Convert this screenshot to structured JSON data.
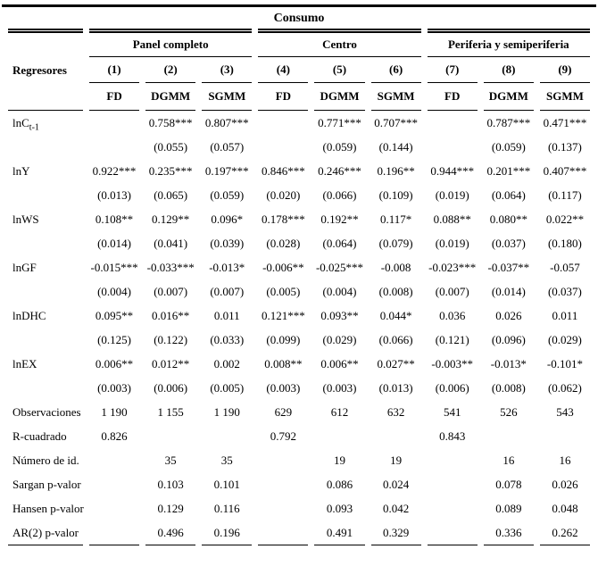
{
  "title": "Consumo",
  "header": {
    "row_label_header": "Regresores",
    "group_labels": [
      "Panel completo",
      "Centro",
      "Periferia y semiperiferia"
    ],
    "column_numbers": [
      "(1)",
      "(2)",
      "(3)",
      "(4)",
      "(5)",
      "(6)",
      "(7)",
      "(8)",
      "(9)"
    ],
    "methods": [
      "FD",
      "DGMM",
      "SGMM",
      "FD",
      "DGMM",
      "SGMM",
      "FD",
      "DGMM",
      "SGMM"
    ]
  },
  "rows": [
    {
      "label": "lnC",
      "label_sub": "t-1",
      "values": [
        "",
        "0.758***",
        "0.807***",
        "",
        "0.771***",
        "0.707***",
        "",
        "0.787***",
        "0.471***"
      ]
    },
    {
      "label": "",
      "values": [
        "",
        "(0.055)",
        "(0.057)",
        "",
        "(0.059)",
        "(0.144)",
        "",
        "(0.059)",
        "(0.137)"
      ]
    },
    {
      "label": "lnY",
      "values": [
        "0.922***",
        "0.235***",
        "0.197***",
        "0.846***",
        "0.246***",
        "0.196**",
        "0.944***",
        "0.201***",
        "0.407***"
      ]
    },
    {
      "label": "",
      "values": [
        "(0.013)",
        "(0.065)",
        "(0.059)",
        "(0.020)",
        "(0.066)",
        "(0.109)",
        "(0.019)",
        "(0.064)",
        "(0.117)"
      ]
    },
    {
      "label": "lnWS",
      "values": [
        "0.108**",
        "0.129**",
        "0.096*",
        "0.178***",
        "0.192**",
        "0.117*",
        "0.088**",
        "0.080**",
        "0.022**"
      ]
    },
    {
      "label": "",
      "values": [
        "(0.014)",
        "(0.041)",
        "(0.039)",
        "(0.028)",
        "(0.064)",
        "(0.079)",
        "(0.019)",
        "(0.037)",
        "(0.180)"
      ]
    },
    {
      "label": "lnGF",
      "values": [
        "-0.015***",
        "-0.033***",
        "-0.013*",
        "-0.006**",
        "-0.025***",
        "-0.008",
        "-0.023***",
        "-0.037**",
        "-0.057"
      ]
    },
    {
      "label": "",
      "values": [
        "(0.004)",
        "(0.007)",
        "(0.007)",
        "(0.005)",
        "(0.004)",
        "(0.008)",
        "(0.007)",
        "(0.014)",
        "(0.037)"
      ]
    },
    {
      "label": "lnDHC",
      "values": [
        "0.095**",
        "0.016**",
        "0.011",
        "0.121***",
        "0.093**",
        "0.044*",
        "0.036",
        "0.026",
        "0.011"
      ]
    },
    {
      "label": "",
      "values": [
        "(0.125)",
        "(0.122)",
        "(0.033)",
        "(0.099)",
        "(0.029)",
        "(0.066)",
        "(0.121)",
        "(0.096)",
        "(0.029)"
      ]
    },
    {
      "label": "lnEX",
      "values": [
        "0.006**",
        "0.012**",
        "0.002",
        "0.008**",
        "0.006**",
        "0.027**",
        "-0.003**",
        "-0.013*",
        "-0.101*"
      ]
    },
    {
      "label": "",
      "values": [
        "(0.003)",
        "(0.006)",
        "(0.005)",
        "(0.003)",
        "(0.003)",
        "(0.013)",
        "(0.006)",
        "(0.008)",
        "(0.062)"
      ]
    },
    {
      "label": "Observaciones",
      "values": [
        "1 190",
        "1 155",
        "1 190",
        "629",
        "612",
        "632",
        "541",
        "526",
        "543"
      ]
    },
    {
      "label": "R-cuadrado",
      "values": [
        "0.826",
        "",
        "",
        "0.792",
        "",
        "",
        "0.843",
        "",
        ""
      ]
    },
    {
      "label": "Número de id.",
      "values": [
        "",
        "35",
        "35",
        "",
        "19",
        "19",
        "",
        "16",
        "16"
      ]
    },
    {
      "label": "Sargan p-valor",
      "values": [
        "",
        "0.103",
        "0.101",
        "",
        "0.086",
        "0.024",
        "",
        "0.078",
        "0.026"
      ]
    },
    {
      "label": "Hansen p-valor",
      "values": [
        "",
        "0.129",
        "0.116",
        "",
        "0.093",
        "0.042",
        "",
        "0.089",
        "0.048"
      ]
    },
    {
      "label": "AR(2) p-valor",
      "values": [
        "",
        "0.496",
        "0.196",
        "",
        "0.491",
        "0.329",
        "",
        "0.336",
        "0.262"
      ]
    }
  ]
}
